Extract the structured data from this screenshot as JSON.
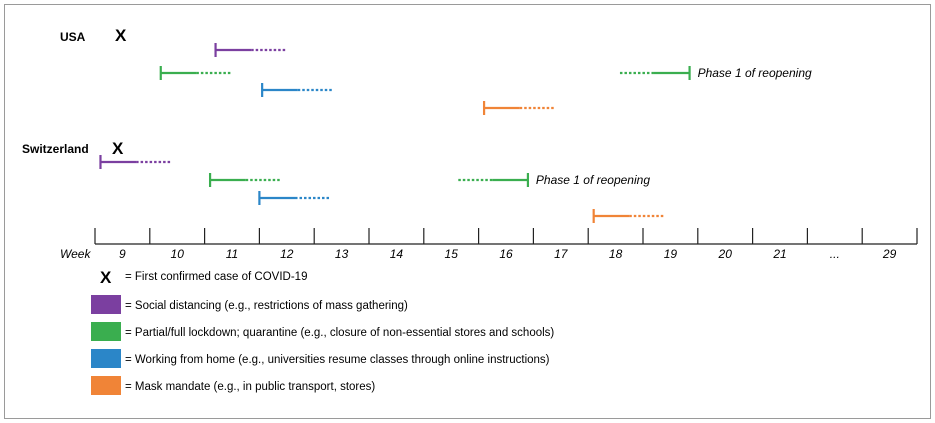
{
  "colors": {
    "social_distancing": "#7b3fa0",
    "lockdown": "#3aae4f",
    "work_from_home": "#2b86c8",
    "mask_mandate": "#f08437",
    "axis": "#222222"
  },
  "countries": [
    {
      "name": "USA",
      "first_case_marker": "X",
      "bars": [
        {
          "measure": "social_distancing",
          "start_week": 10.7,
          "end_week": 12.0,
          "direction": "right"
        },
        {
          "measure": "lockdown",
          "start_week": 9.7,
          "end_week": 11.0,
          "direction": "right"
        },
        {
          "measure": "work_from_home",
          "start_week": 11.55,
          "end_week": 12.85,
          "direction": "right"
        },
        {
          "measure": "mask_mandate",
          "start_week": 15.6,
          "end_week": 16.9,
          "direction": "right"
        },
        {
          "measure": "lockdown",
          "start_week": 19.35,
          "end_week": 18.05,
          "direction": "left",
          "annotation": "Phase 1 of reopening"
        }
      ]
    },
    {
      "name": "Switzerland",
      "first_case_marker": "X",
      "bars": [
        {
          "measure": "social_distancing",
          "start_week": 8.6,
          "end_week": 9.9,
          "direction": "right"
        },
        {
          "measure": "lockdown",
          "start_week": 10.6,
          "end_week": 11.9,
          "direction": "right"
        },
        {
          "measure": "work_from_home",
          "start_week": 11.5,
          "end_week": 12.8,
          "direction": "right"
        },
        {
          "measure": "lockdown",
          "start_week": 16.4,
          "end_week": 15.1,
          "direction": "left",
          "annotation": "Phase 1 of reopening"
        },
        {
          "measure": "mask_mandate",
          "start_week": 17.6,
          "end_week": 18.9,
          "direction": "right"
        }
      ]
    }
  ],
  "axis": {
    "title": "Week",
    "tick_labels": [
      "9",
      "10",
      "11",
      "12",
      "13",
      "14",
      "15",
      "16",
      "17",
      "18",
      "19",
      "20",
      "21",
      "...",
      "29"
    ]
  },
  "legend": [
    {
      "key": "first_case",
      "symbol": "X",
      "text": "= First confirmed case of COVID-19"
    },
    {
      "key": "social_distancing",
      "text": "= Social distancing (e.g., restrictions of mass gathering)"
    },
    {
      "key": "lockdown",
      "text": "= Partial/full lockdown; quarantine (e.g., closure of non-essential stores and schools)"
    },
    {
      "key": "work_from_home",
      "text": "= Working from home (e.g., universities resume classes through online instructions)"
    },
    {
      "key": "mask_mandate",
      "text": "= Mask mandate (e.g., in public transport, stores)"
    }
  ]
}
